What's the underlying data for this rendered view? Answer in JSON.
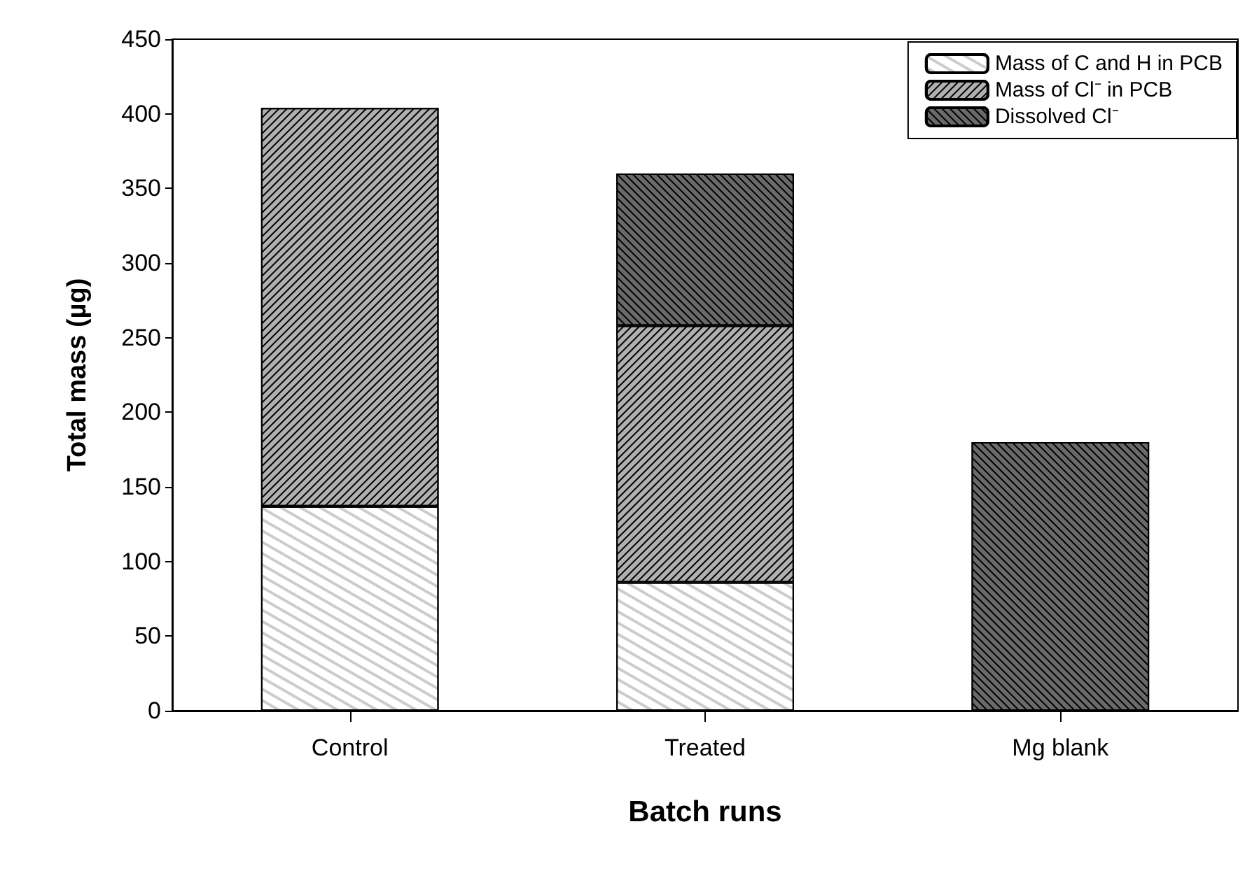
{
  "chart_data": {
    "type": "bar",
    "stacked": true,
    "xlabel": "Batch runs",
    "ylabel": "Total mass (µg)",
    "categories": [
      "Control",
      "Treated",
      "Mg blank"
    ],
    "series": [
      {
        "name": "Mass of C and H in PCB",
        "color": "#ffffff",
        "values": [
          137,
          86,
          null
        ]
      },
      {
        "name": "Mass of Cl⁻ in PCB",
        "color": "#b0b0b0",
        "values": [
          267,
          172,
          null
        ]
      },
      {
        "name": "Dissolved Cl⁻",
        "color": "#6a6a6a",
        "values": [
          null,
          102,
          180
        ]
      }
    ],
    "ylim": [
      0,
      450
    ],
    "yticks": [
      0,
      50,
      100,
      150,
      200,
      250,
      300,
      350,
      400,
      450
    ],
    "grid": false,
    "legend": "top right"
  }
}
